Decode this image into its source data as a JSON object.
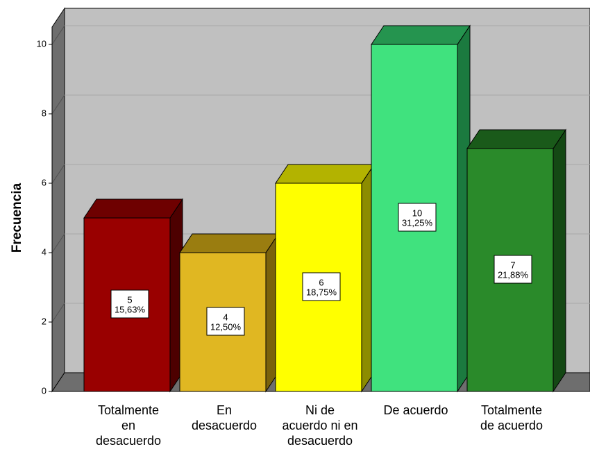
{
  "chart_data": {
    "type": "bar",
    "ylabel": "Frecuencia",
    "xlabel": "",
    "ylim": [
      0,
      10.5
    ],
    "yticks": [
      0,
      2,
      4,
      6,
      8,
      10
    ],
    "grid": true,
    "categories": [
      [
        "Totalmente",
        "en",
        "desacuerdo"
      ],
      [
        "En",
        "desacuerdo"
      ],
      [
        "Ni de",
        "acuerdo ni en",
        "desacuerdo"
      ],
      [
        "De acuerdo"
      ],
      [
        "Totalmente",
        "de acuerdo"
      ]
    ],
    "values": [
      5,
      4,
      6,
      10,
      7
    ],
    "percent_labels": [
      "15,63%",
      "12,50%",
      "18,75%",
      "31,25%",
      "21,88%"
    ],
    "colors": [
      {
        "front": "#990000",
        "top": "#6e0000",
        "side": "#4d0000"
      },
      {
        "front": "#e0b722",
        "top": "#9a7d10",
        "side": "#7a620c"
      },
      {
        "front": "#ffff00",
        "top": "#b3b300",
        "side": "#8c8c00"
      },
      {
        "front": "#40e27e",
        "top": "#25944f",
        "side": "#1b7a3f"
      },
      {
        "front": "#2a8a2a",
        "top": "#1a5a1a",
        "side": "#144814"
      }
    ],
    "plot_background": "#c0c0c0"
  }
}
